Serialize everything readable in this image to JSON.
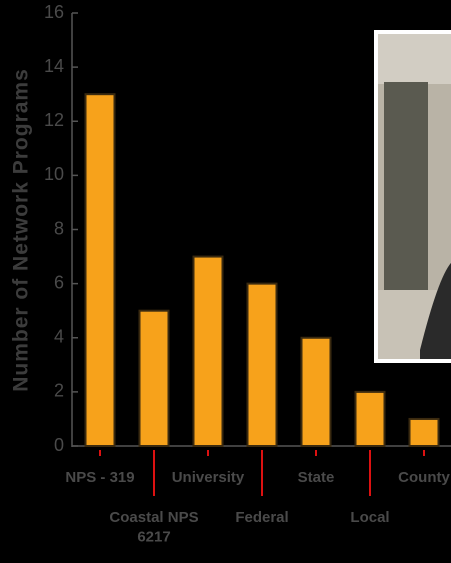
{
  "chart_data": {
    "type": "bar",
    "ylabel": "Number of Network Programs",
    "categories": [
      "NPS - 319",
      "Coastal NPS\n6217",
      "University",
      "Federal",
      "State",
      "Local",
      "County"
    ],
    "values": [
      13,
      5,
      7,
      6,
      4,
      2,
      1
    ],
    "color": "#f7a21b",
    "ylim": [
      0,
      16
    ],
    "yticks": [
      0,
      2,
      4,
      6,
      8,
      10,
      12,
      14,
      16
    ]
  }
}
